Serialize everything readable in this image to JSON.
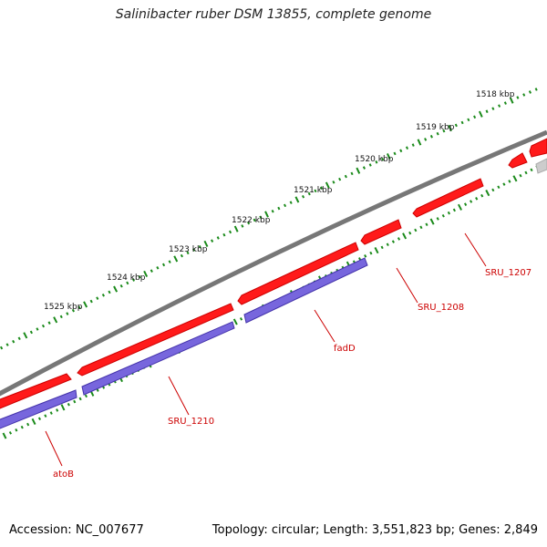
{
  "title": "Salinibacter ruber DSM 13855, complete genome",
  "footer": {
    "accession": "Accession: NC_007677",
    "summary": "Topology: circular; Length: 3,551,823 bp; Genes: 2,849"
  },
  "kbp_labels": [
    "1518 kbp",
    "1519 kbp",
    "1520 kbp",
    "1521 kbp",
    "1522 kbp",
    "1523 kbp",
    "1524 kbp",
    "1525 kbp"
  ],
  "gene_labels": [
    "SRU_1207",
    "SRU_1208",
    "fadD",
    "SRU_1210",
    "atoB"
  ],
  "colors": {
    "backbone": "#777777",
    "forward_gene": "#ff0000",
    "reverse_gene": "#7060cc",
    "tick": "#1a8a1a",
    "label": "#cc0000"
  }
}
